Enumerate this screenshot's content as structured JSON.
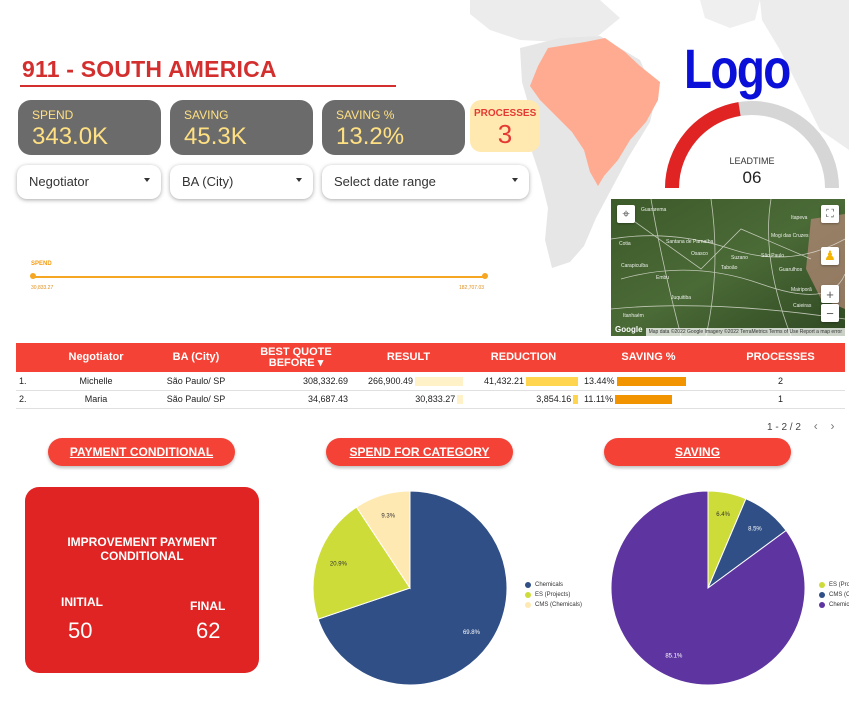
{
  "header": {
    "title": "911 - SOUTH AMERICA",
    "logo_text": "Logo"
  },
  "kpis": {
    "spend": {
      "label": "SPEND",
      "value": "343.0K"
    },
    "saving": {
      "label": "SAVING",
      "value": "45.3K"
    },
    "saving_pct": {
      "label": "SAVING %",
      "value": "13.2%"
    },
    "processes": {
      "label": "PROCESSES",
      "value": "3"
    }
  },
  "filters": {
    "negotiator": "Negotiator",
    "ba_city": "BA (City)",
    "date_range": "Select date range"
  },
  "slider": {
    "label": "SPEND",
    "min_label": "30,833.27",
    "max_label": "182,707.03"
  },
  "gauge": {
    "label": "LEADTIME",
    "value": "06",
    "fill_fraction": 0.45,
    "fill_color": "#e02424",
    "track_color": "#d6d6d6"
  },
  "map": {
    "place_labels": [
      "Guararema",
      "Itapeva",
      "Cotia",
      "Santana de Parnaíba",
      "Osasco",
      "Carapicuíba",
      "Embu",
      "Taboão",
      "Mogi das Cruzes",
      "Suzano",
      "São Paulo",
      "Guarulhos",
      "Juquitiba",
      "Itanhaém",
      "Mairiporã",
      "Caieiras"
    ],
    "attribution": "Map data ©2022 Google Imagery ©2022 TerraMetrics   Terms of Use   Report a map error",
    "google_label": "Google"
  },
  "table": {
    "columns": [
      "Negotiator",
      "BA (City)",
      "BEST QUOTE BEFORE",
      "RESULT",
      "REDUCTION",
      "SAVING %",
      "PROCESSES"
    ],
    "sort_indicator": "▾",
    "rows": [
      {
        "index": "1.",
        "negotiator": "Michelle",
        "ba_city": "São Paulo/ SP",
        "best_quote": "308,332.69",
        "result": "266,900.49",
        "result_fraction": 1.0,
        "reduction": "41,432.21",
        "reduction_fraction": 1.0,
        "saving_pct": "13.44%",
        "saving_fraction": 1.0,
        "processes": "2"
      },
      {
        "index": "2.",
        "negotiator": "Maria",
        "ba_city": "São Paulo/ SP",
        "best_quote": "34,687.43",
        "result": "30,833.27",
        "result_fraction": 0.12,
        "reduction": "3,854.16",
        "reduction_fraction": 0.09,
        "saving_pct": "11.11%",
        "saving_fraction": 0.83,
        "processes": "1"
      }
    ],
    "pager": "1 - 2 / 2",
    "pager_prev": "‹",
    "pager_next": "›"
  },
  "sections": {
    "payment": "PAYMENT CONDITIONAL",
    "spend_category": "SPEND FOR CATEGORY",
    "saving": "SAVING"
  },
  "payment_card": {
    "title_line1": "IMPROVEMENT PAYMENT",
    "title_line2": "CONDITIONAL",
    "initial_label": "INITIAL",
    "initial_value": "50",
    "final_label": "FINAL",
    "final_value": "62"
  },
  "colors": {
    "accent": "#f44336",
    "kpi_bg": "#6b6b6b",
    "kpi_text": "#ffe082",
    "brazil": "#ffab91",
    "navy": "#2f4f86",
    "lime": "#cddc39",
    "cream": "#ffe9b3",
    "purple": "#5e35a0"
  },
  "chart_data": [
    {
      "type": "pie",
      "title": "SPEND FOR CATEGORY",
      "slices": [
        {
          "name": "Chemicals",
          "value": 69.8,
          "label": "69.8%",
          "color": "#2f4f86"
        },
        {
          "name": "ES (Projects)",
          "value": 20.9,
          "label": "20.9%",
          "color": "#cddc39"
        },
        {
          "name": "CMS (Chemicals)",
          "value": 9.3,
          "label": "9.3%",
          "color": "#ffe9b3"
        }
      ]
    },
    {
      "type": "pie",
      "title": "SAVING",
      "slices": [
        {
          "name": "ES (Pro",
          "value": 6.4,
          "label": "6.4%",
          "color": "#cddc39"
        },
        {
          "name": "CMS (C",
          "value": 8.5,
          "label": "8.5%",
          "color": "#2f4f86"
        },
        {
          "name": "Chemic",
          "value": 85.1,
          "label": "85.1%",
          "color": "#5e35a0"
        }
      ]
    }
  ]
}
